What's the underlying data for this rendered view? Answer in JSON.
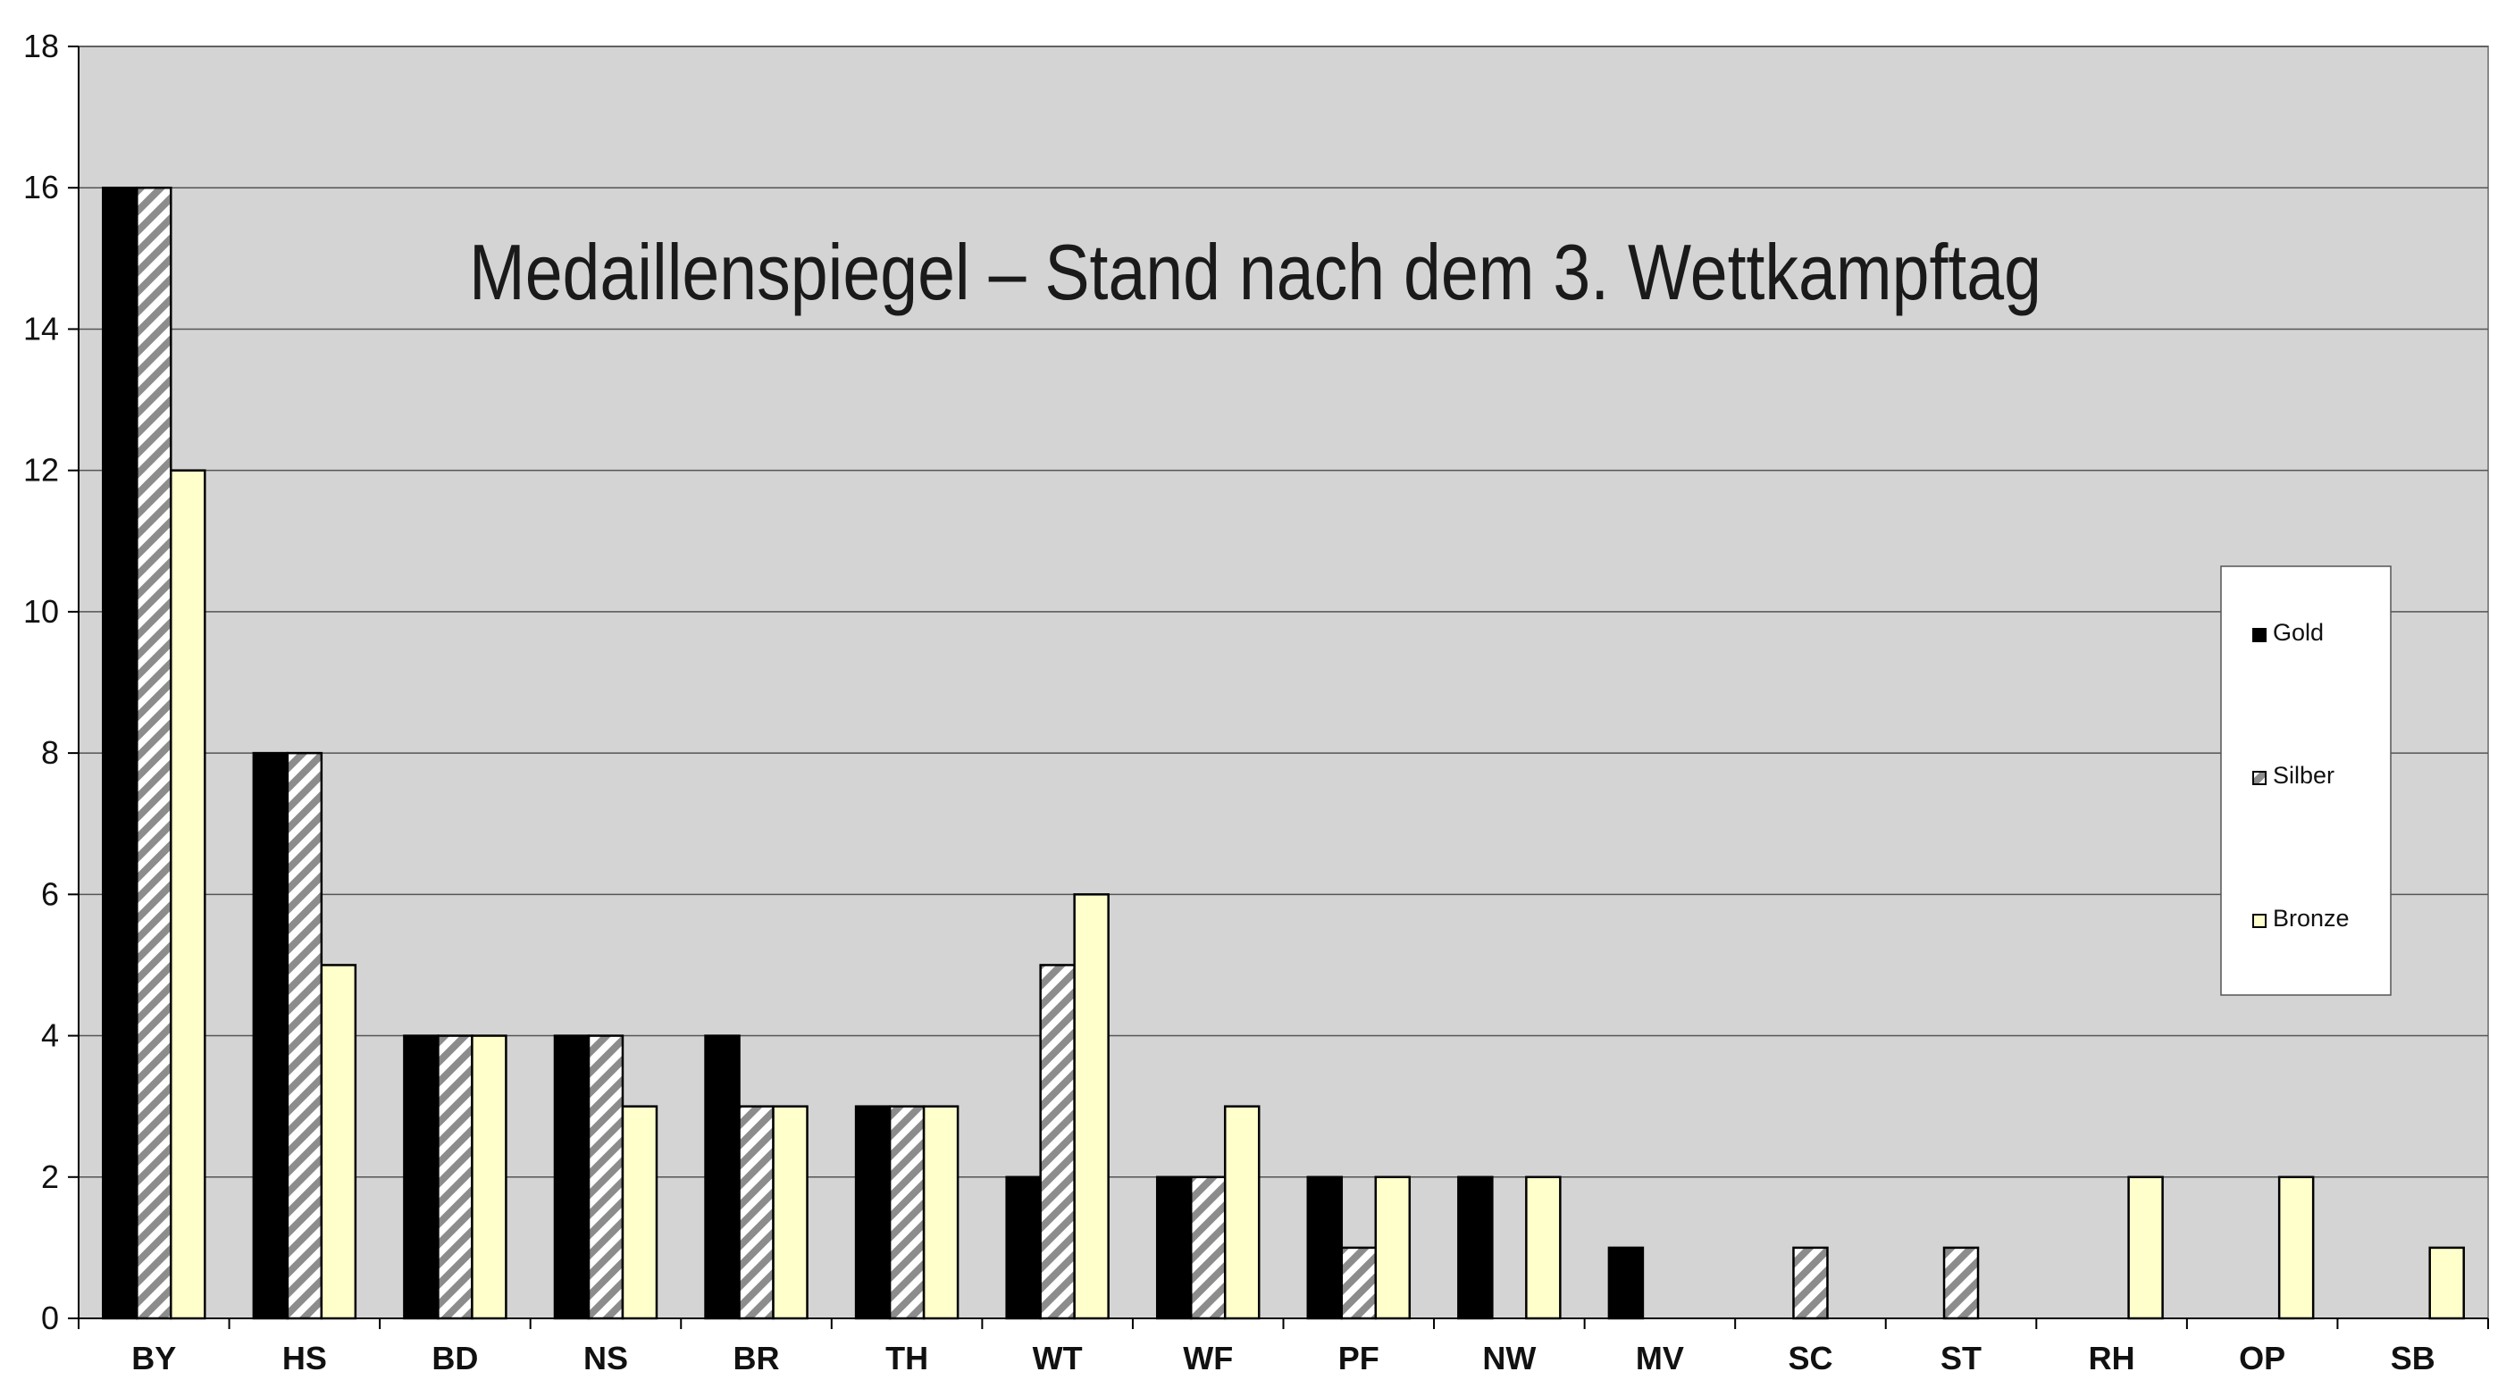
{
  "chart_data": {
    "type": "bar",
    "title": "Medaillenspiegel – Stand nach dem 3. Wettkampftag",
    "xlabel": "",
    "ylabel": "",
    "ylim": [
      0,
      18
    ],
    "yticks": [
      0,
      2,
      4,
      6,
      8,
      10,
      12,
      14,
      16,
      18
    ],
    "grid": true,
    "legend_position": "right",
    "categories": [
      "BY",
      "HS",
      "BD",
      "NS",
      "BR",
      "TH",
      "WT",
      "WF",
      "PF",
      "NW",
      "MV",
      "SC",
      "ST",
      "RH",
      "OP",
      "SB"
    ],
    "series": [
      {
        "name": "Gold",
        "color": "#000000",
        "pattern": "solid",
        "values": [
          16,
          8,
          4,
          4,
          4,
          3,
          2,
          2,
          2,
          2,
          1,
          0,
          0,
          0,
          0,
          0
        ]
      },
      {
        "name": "Silber",
        "color": "#8c8c8c",
        "pattern": "diagonal",
        "values": [
          16,
          8,
          4,
          4,
          3,
          3,
          5,
          2,
          1,
          0,
          0,
          1,
          1,
          0,
          0,
          0
        ]
      },
      {
        "name": "Bronze",
        "color": "#ffffcc",
        "pattern": "solid",
        "values": [
          12,
          5,
          4,
          3,
          3,
          3,
          6,
          3,
          2,
          2,
          0,
          0,
          0,
          2,
          2,
          1
        ]
      }
    ],
    "colors": {
      "plot_background": "#d4d4d4",
      "gridline": "#555555",
      "outline": "#000000"
    }
  }
}
